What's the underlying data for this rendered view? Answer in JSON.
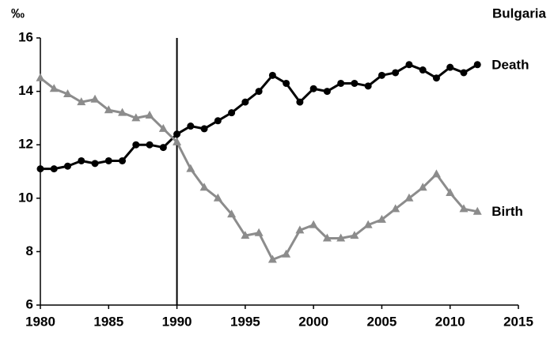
{
  "chart_data": {
    "type": "line",
    "title": "Bulgaria",
    "y_label": "‰",
    "x": [
      1980,
      1981,
      1982,
      1983,
      1984,
      1985,
      1986,
      1987,
      1988,
      1989,
      1990,
      1991,
      1992,
      1993,
      1994,
      1995,
      1996,
      1997,
      1998,
      1999,
      2000,
      2001,
      2002,
      2003,
      2004,
      2005,
      2006,
      2007,
      2008,
      2009,
      2010,
      2011,
      2012
    ],
    "series": [
      {
        "name": "Death",
        "color": "#000000",
        "marker": "circle",
        "values": [
          11.1,
          11.1,
          11.2,
          11.4,
          11.3,
          11.4,
          11.4,
          12.0,
          12.0,
          11.9,
          12.4,
          12.7,
          12.6,
          12.9,
          13.2,
          13.6,
          14.0,
          14.6,
          14.3,
          13.6,
          14.1,
          14.0,
          14.3,
          14.3,
          14.2,
          14.6,
          14.7,
          15.0,
          14.8,
          14.5,
          14.9,
          14.7,
          15.0
        ]
      },
      {
        "name": "Birth",
        "color": "#8c8c8c",
        "marker": "triangle",
        "values": [
          14.5,
          14.1,
          13.9,
          13.6,
          13.7,
          13.3,
          13.2,
          13.0,
          13.1,
          12.6,
          12.1,
          11.1,
          10.4,
          10.0,
          9.4,
          8.6,
          8.7,
          7.7,
          7.9,
          8.8,
          9.0,
          8.5,
          8.5,
          8.6,
          9.0,
          9.2,
          9.6,
          10.0,
          10.4,
          10.9,
          10.2,
          9.6,
          9.5
        ]
      }
    ],
    "xlim": [
      1980,
      2015
    ],
    "xticks": [
      1980,
      1985,
      1990,
      1995,
      2000,
      2005,
      2010,
      2015
    ],
    "ylim": [
      6,
      16
    ],
    "yticks": [
      6,
      8,
      10,
      12,
      14,
      16
    ],
    "reference_line_x": 1990,
    "grid": false
  }
}
